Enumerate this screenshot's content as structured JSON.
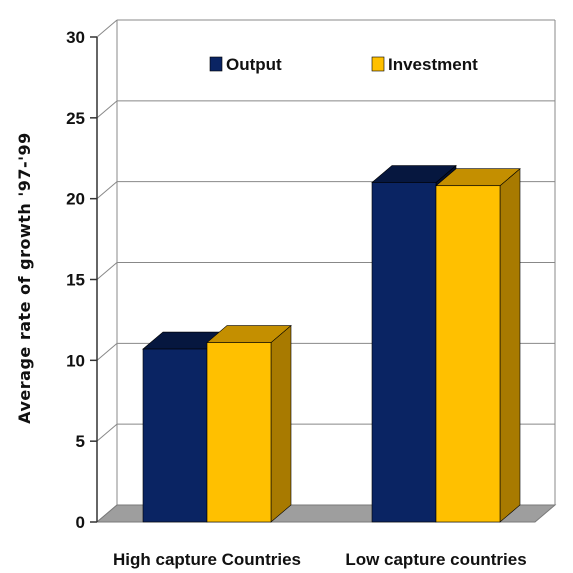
{
  "chart_data": {
    "type": "bar",
    "title": "",
    "xlabel": "",
    "ylabel": "Average rate of  growth '97-'99",
    "ylim": [
      0,
      30
    ],
    "yticks": [
      0,
      5,
      10,
      15,
      20,
      25,
      30
    ],
    "grid": true,
    "legend_position": "top",
    "categories": [
      "High capture Countries",
      "Low capture countries"
    ],
    "series": [
      {
        "name": "Output",
        "values": [
          10.7,
          21.0
        ],
        "color": "#0a2463",
        "top_color": "#06173f",
        "side_color": "#041030"
      },
      {
        "name": "Investment",
        "values": [
          11.1,
          20.8
        ],
        "color": "#ffc000",
        "top_color": "#c48f00",
        "side_color": "#a87a00"
      }
    ],
    "colors": {
      "floor": "#9e9e9e",
      "grid": "#888888",
      "axis": "#333333"
    }
  }
}
